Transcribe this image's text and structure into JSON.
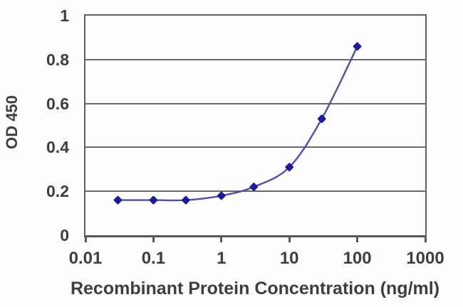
{
  "chart_data": {
    "type": "line",
    "title": "",
    "xlabel": "Recombinant Protein Concentration (ng/ml)",
    "ylabel": "OD 450",
    "x_scale": "log",
    "xlim": [
      0.01,
      1000
    ],
    "ylim": [
      0,
      1
    ],
    "x_tick_labels": [
      "0.01",
      "0.1",
      "1",
      "10",
      "100",
      "1000"
    ],
    "x_tick_values": [
      0.01,
      0.1,
      1,
      10,
      100,
      1000
    ],
    "y_tick_labels": [
      "0",
      "0.2",
      "0.4",
      "0.6",
      "0.8",
      "1"
    ],
    "y_tick_values": [
      0,
      0.2,
      0.4,
      0.6,
      0.8,
      1
    ],
    "grid": "horizontal",
    "legend": "none",
    "marker": "diamond",
    "series": [
      {
        "name": "OD 450",
        "x": [
          0.03,
          0.1,
          0.3,
          1,
          3,
          10,
          30,
          100
        ],
        "y": [
          0.16,
          0.16,
          0.16,
          0.18,
          0.22,
          0.31,
          0.53,
          0.86
        ]
      }
    ],
    "colors": {
      "line": "#4f4fa5",
      "marker": "#1c1c93",
      "grid": "#6a6a6a",
      "axis": "#5e5e5e",
      "text": "#3e3e3e",
      "background": "#fdfdfd"
    }
  }
}
